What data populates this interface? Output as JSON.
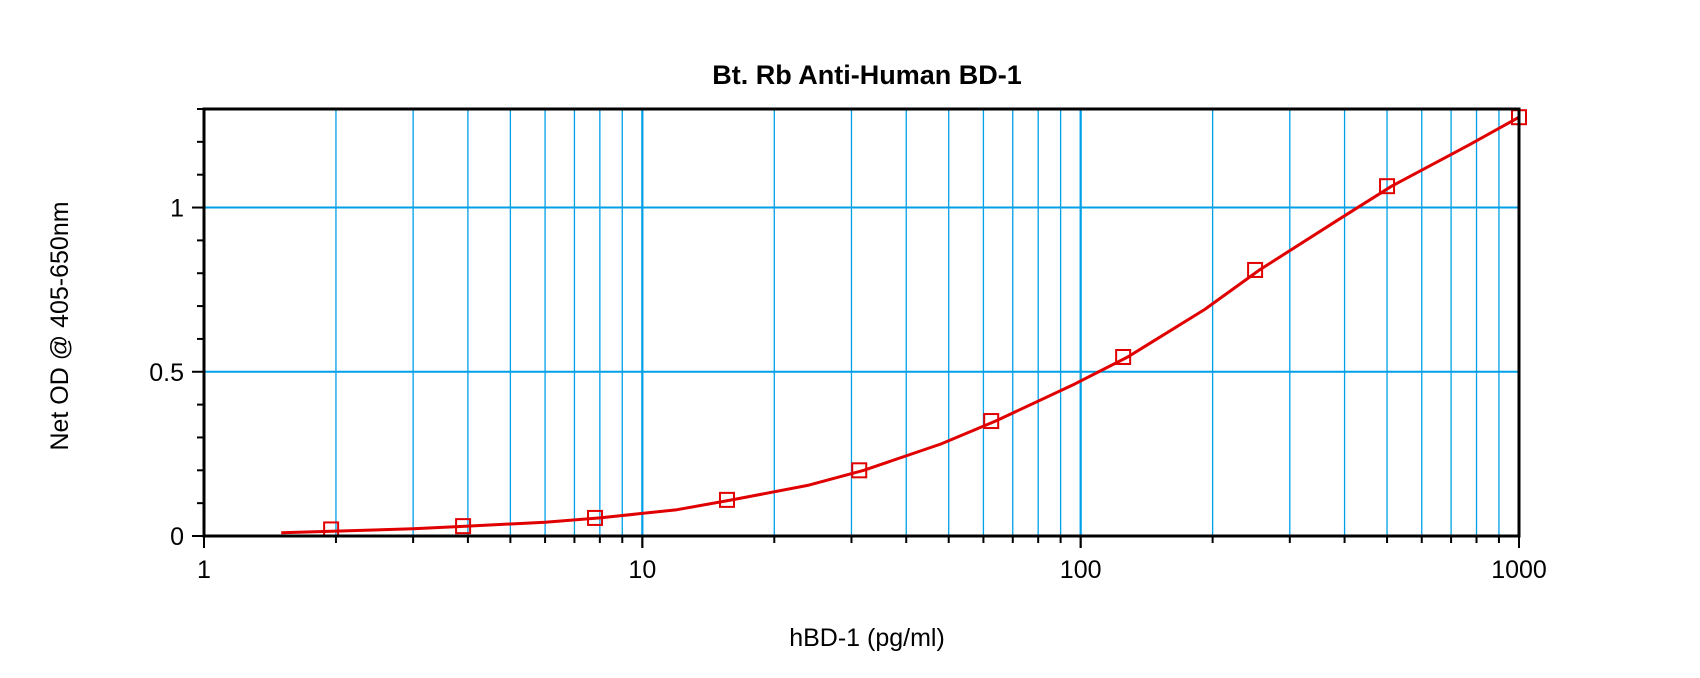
{
  "chart_data": {
    "type": "scatter",
    "title": "Bt. Rb Anti-Human BD-1",
    "xlabel": "hBD-1 (pg/ml)",
    "ylabel": "Net OD @ 405-650nm",
    "x_scale": "log",
    "xlim": [
      1,
      1000
    ],
    "ylim": [
      0,
      1.3
    ],
    "x_ticks": [
      1,
      10,
      100,
      1000
    ],
    "x_tick_labels": [
      "1",
      "10",
      "100",
      "1000"
    ],
    "y_ticks": [
      0,
      0.5,
      1
    ],
    "y_tick_labels": [
      "0",
      "0.5",
      "1"
    ],
    "grid": true,
    "series": [
      {
        "x": [
          1.95,
          3.9,
          7.8,
          15.6,
          31.25,
          62.5,
          125,
          250,
          500,
          1000
        ],
        "y": [
          0.02,
          0.03,
          0.055,
          0.11,
          0.2,
          0.35,
          0.545,
          0.81,
          1.065,
          1.275
        ]
      }
    ],
    "curve": {
      "x": [
        1.5,
        2,
        3,
        4,
        6,
        8,
        12,
        16,
        24,
        32,
        48,
        64,
        96,
        128,
        192,
        256,
        384,
        512,
        768,
        1000
      ],
      "y": [
        0.01,
        0.015,
        0.022,
        0.03,
        0.042,
        0.055,
        0.08,
        0.11,
        0.155,
        0.2,
        0.28,
        0.35,
        0.46,
        0.545,
        0.69,
        0.81,
        0.96,
        1.065,
        1.19,
        1.275
      ]
    },
    "colors": {
      "series": "#e00000",
      "grid": "#00a0e8",
      "axis": "#000000"
    }
  }
}
